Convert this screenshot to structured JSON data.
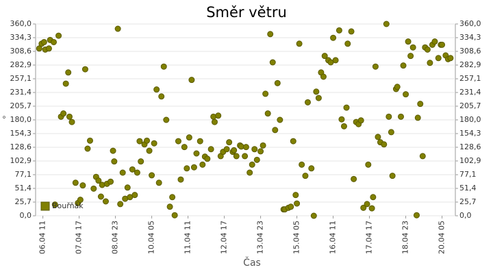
{
  "chart_data": {
    "type": "scatter",
    "title": "Směr větru",
    "x_label": "Čas",
    "y_label": "°",
    "xlim": [
      "06.04 05",
      "20.04 16"
    ],
    "xticks": [
      "06.04 11",
      "07.04 17",
      "08.04 23",
      "10.04 05",
      "11.04 11",
      "12.04 17",
      "13.04 23",
      "15.04 05",
      "16.04 11",
      "17.04 17",
      "18.04 23",
      "20.04 05"
    ],
    "ylim": [
      0,
      360
    ],
    "yticks": [
      {
        "value": 0,
        "label": "0,0"
      },
      {
        "value": 25.7,
        "label": "25,7"
      },
      {
        "value": 51.4,
        "label": "51,4"
      },
      {
        "value": 77.1,
        "label": "77,1"
      },
      {
        "value": 102.9,
        "label": "102,9"
      },
      {
        "value": 128.6,
        "label": "128,6"
      },
      {
        "value": 154.3,
        "label": "154,3"
      },
      {
        "value": 180,
        "label": "180,0"
      },
      {
        "value": 205.7,
        "label": "205,7"
      },
      {
        "value": 231.4,
        "label": "231,4"
      },
      {
        "value": 257.1,
        "label": "257,1"
      },
      {
        "value": 282.9,
        "label": "282,9"
      },
      {
        "value": 308.6,
        "label": "308,6"
      },
      {
        "value": 334.3,
        "label": "334,3"
      },
      {
        "value": 360,
        "label": "360,0"
      }
    ],
    "grid": true,
    "legend": "bottom-left",
    "series": [
      {
        "name": "Bouřňák",
        "color": "#808000",
        "x": [
          "06.04 08",
          "06.04 10",
          "06.04 12",
          "06.04 13",
          "06.04 16",
          "06.04 17",
          "06.04 20",
          "06.04 21",
          "07.04 00",
          "07.04 02",
          "07.04 04",
          "07.04 06",
          "07.04 08",
          "07.04 09",
          "07.04 11",
          "07.04 14",
          "07.04 16",
          "07.04 18",
          "07.04 20",
          "07.04 22",
          "08.04 00",
          "08.04 02",
          "08.04 05",
          "08.04 07",
          "08.04 09",
          "08.04 11",
          "08.04 12",
          "08.04 15",
          "08.04 16",
          "08.04 19",
          "08.04 21",
          "08.04 22",
          "09.04 01",
          "09.04 03",
          "09.04 05",
          "09.04 07",
          "09.04 09",
          "09.04 11",
          "09.04 13",
          "09.04 15",
          "09.04 17",
          "09.04 19",
          "09.04 20",
          "09.04 23",
          "10.04 01",
          "10.04 03",
          "10.04 05",
          "10.04 07",
          "10.04 09",
          "10.04 11",
          "10.04 13",
          "10.04 15",
          "10.04 17",
          "10.04 20",
          "10.04 22",
          "11.04 00",
          "11.04 03",
          "11.04 05",
          "11.04 08",
          "11.04 10",
          "11.04 12",
          "11.04 14",
          "11.04 16",
          "11.04 18",
          "11.04 21",
          "11.04 23",
          "12.04 01",
          "12.04 03",
          "12.04 06",
          "12.04 08",
          "12.04 09",
          "12.04 12",
          "12.04 14",
          "12.04 16",
          "12.04 19",
          "12.04 21",
          "13.04 00",
          "13.04 01",
          "13.04 03",
          "13.04 06",
          "13.04 07",
          "13.04 10",
          "13.04 11",
          "13.04 14",
          "13.04 16",
          "13.04 18",
          "13.04 20",
          "13.04 23",
          "14.04 01",
          "14.04 03",
          "14.04 05",
          "14.04 07",
          "14.04 09",
          "14.04 11",
          "14.04 13",
          "14.04 15",
          "14.04 18",
          "14.04 19",
          "14.04 22",
          "15.04 00",
          "15.04 02",
          "15.04 04",
          "15.04 05",
          "15.04 07",
          "15.04 09",
          "15.04 12",
          "15.04 14",
          "15.04 17",
          "15.04 19",
          "15.04 21",
          "15.04 23",
          "16.04 01",
          "16.04 03",
          "16.04 04",
          "16.04 07",
          "16.04 09",
          "16.04 11",
          "16.04 13",
          "16.04 16",
          "16.04 18",
          "16.04 20",
          "16.04 22",
          "16.04 23",
          "17.04 02",
          "17.04 04",
          "17.04 06",
          "17.04 08",
          "17.04 10",
          "17.04 12",
          "17.04 15",
          "17.04 16",
          "17.04 19",
          "17.04 20",
          "17.04 22",
          "18.04 00",
          "18.04 02",
          "18.04 05",
          "18.04 07",
          "18.04 09",
          "18.04 11",
          "18.04 12",
          "18.04 15",
          "18.04 16",
          "18.04 19",
          "18.04 21",
          "18.04 23",
          "19.04 01",
          "19.04 03",
          "19.04 05",
          "19.04 08",
          "19.04 09",
          "19.04 11",
          "19.04 13",
          "19.04 15",
          "19.04 17",
          "19.04 19",
          "19.04 21",
          "19.04 23",
          "20.04 02",
          "20.04 04",
          "20.04 05",
          "20.04 08",
          "20.04 10",
          "20.04 12"
        ],
        "values": [
          314,
          323,
          326,
          312,
          314,
          330,
          326,
          21,
          338,
          186,
          192,
          248,
          269,
          186,
          176,
          62,
          24,
          30,
          57,
          275,
          126,
          141,
          51,
          73,
          66,
          36,
          58,
          27,
          60,
          64,
          122,
          102,
          351,
          22,
          81,
          32,
          53,
          35,
          87,
          39,
          81,
          140,
          102,
          134,
          141,
          122,
          76,
          136,
          237,
          62,
          224,
          280,
          180,
          17,
          35,
          1,
          140,
          68,
          129,
          89,
          147,
          255,
          91,
          117,
          140,
          96,
          111,
          107,
          125,
          186,
          176,
          188,
          112,
          120,
          125,
          138,
          120,
          123,
          112,
          132,
          130,
          112,
          129,
          81,
          96,
          125,
          105,
          121,
          132,
          229,
          192,
          341,
          288,
          161,
          249,
          180,
          12,
          12,
          15,
          17,
          140,
          39,
          23,
          323,
          96,
          75,
          213,
          89,
          0,
          233,
          221,
          269,
          261,
          300,
          292,
          288,
          334,
          292,
          348,
          181,
          168,
          203,
          323,
          346,
          69,
          176,
          172,
          179,
          15,
          22,
          96,
          14,
          35,
          280,
          148,
          138,
          134,
          360,
          186,
          157,
          75,
          238,
          242,
          186,
          282,
          228,
          327,
          300,
          316,
          1,
          184,
          210,
          112,
          316,
          312,
          287,
          321,
          327,
          296,
          321,
          321,
          301,
          294,
          296
        ]
      }
    ]
  }
}
